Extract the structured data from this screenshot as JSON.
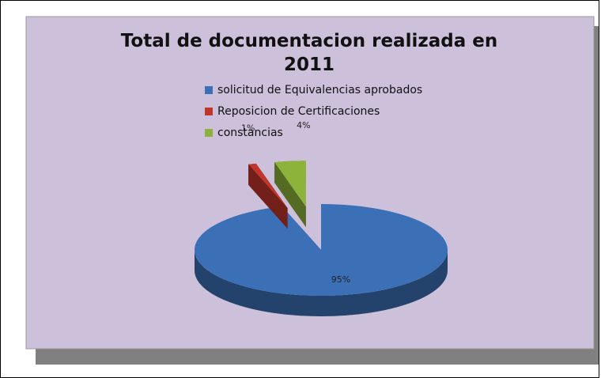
{
  "chart_data": {
    "type": "pie3d",
    "title": "Total de documentacion realizada en 2011",
    "categories": [
      "solicitud de Equivalencias aprobados",
      "Reposicion de Certificaciones",
      "constancias"
    ],
    "values": [
      95,
      1,
      4
    ],
    "value_labels": [
      "95%",
      "1%",
      "4%"
    ],
    "colors": [
      "#3b6fb6",
      "#c0362c",
      "#8db33a"
    ],
    "legend": "top"
  }
}
